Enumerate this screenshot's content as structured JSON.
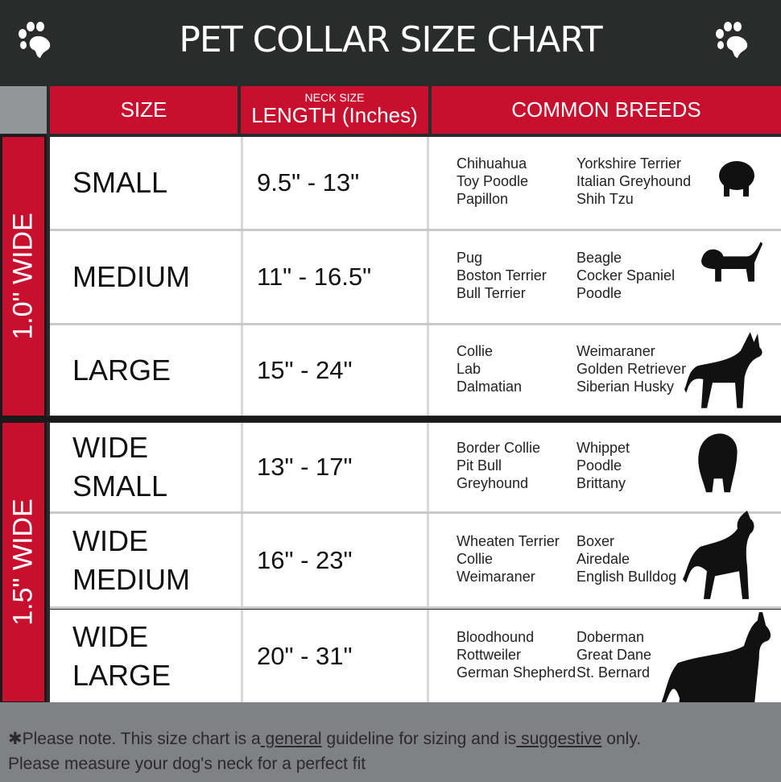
{
  "title": "PET COLLAR SIZE CHART",
  "headers": {
    "size": "SIZE",
    "length_small": "NECK SIZE",
    "length": "LENGTH (Inches)",
    "breeds": "COMMON BREEDS"
  },
  "groups": [
    {
      "label": "1.0\" WIDE"
    },
    {
      "label": "1.5\" WIDE"
    }
  ],
  "rows": [
    {
      "size": "SMALL",
      "length": "9.5\" - 13\"",
      "breeds_a": "Chihuahua\nToy Poodle\nPapillon",
      "breeds_b": "Yorkshire Terrier\nItalian Greyhound\nShih Tzu"
    },
    {
      "size": "MEDIUM",
      "length": "11\" - 16.5\"",
      "breeds_a": "Pug\nBoston Terrier\nBull Terrier",
      "breeds_b": "Beagle\nCocker Spaniel\nPoodle"
    },
    {
      "size": "LARGE",
      "length": "15\" - 24\"",
      "breeds_a": "Collie\nLab\nDalmatian",
      "breeds_b": "Weimaraner\nGolden Retriever\nSiberian Husky"
    },
    {
      "size": "WIDE\nSMALL",
      "length": "13\" - 17\"",
      "breeds_a": "Border Collie\nPit Bull\nGreyhound",
      "breeds_b": "Whippet\nPoodle\nBrittany"
    },
    {
      "size": "WIDE\nMEDIUM",
      "length": "16\" - 23\"",
      "breeds_a": "Wheaten Terrier\nCollie\nWeimaraner",
      "breeds_b": "Boxer\nAiredale\nEnglish Bulldog"
    },
    {
      "size": "WIDE\nLARGE",
      "length": "20\" - 31\"",
      "breeds_a": "Bloodhound\nRottweiler\nGerman Shepherd",
      "breeds_b": "Doberman\nGreat Dane\nSt. Bernard"
    }
  ],
  "footer": {
    "p1": "✱Please note. This size chart is a",
    "u1": " general",
    "p2": " guideline for sizing and is",
    "u2": " suggestive",
    "p3": " only.",
    "line2": "Please measure your dog's neck for a perfect fit"
  },
  "icons": [
    "paw-icon",
    "dog-silhouette-icon"
  ],
  "colors": {
    "header": "#2a2b2b",
    "accent": "#c8102e",
    "footer": "#808184"
  }
}
